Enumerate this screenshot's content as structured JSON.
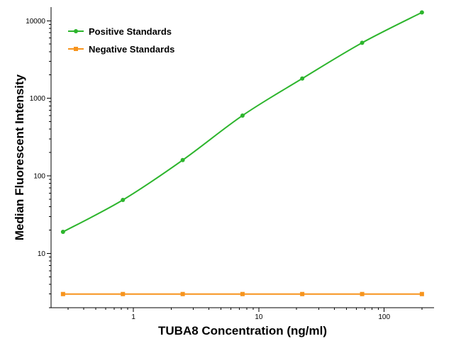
{
  "chart_data": {
    "type": "line",
    "title": "",
    "xlabel": "TUBA8 Concentration (ng/ml)",
    "ylabel": "Median Fluorescent Intensity",
    "x_scale": "log",
    "y_scale": "log",
    "xlim": [
      0.22,
      250
    ],
    "ylim": [
      2,
      15000
    ],
    "x_ticks": [
      1,
      10,
      100
    ],
    "x_tick_labels": [
      "1",
      "10",
      "100"
    ],
    "y_ticks": [
      10,
      100,
      1000,
      10000
    ],
    "y_tick_labels": [
      "10",
      "100",
      "1000",
      "10000"
    ],
    "grid": false,
    "legend_position": "top-left",
    "series": [
      {
        "name": "Positive Standards",
        "color": "#2db52d",
        "marker": "circle",
        "x": [
          0.274,
          0.823,
          2.47,
          7.41,
          22.2,
          66.7,
          200
        ],
        "y": [
          19,
          49,
          160,
          600,
          1800,
          5200,
          12800
        ]
      },
      {
        "name": "Negative Standards",
        "color": "#f7941d",
        "marker": "square",
        "x": [
          0.274,
          0.823,
          2.47,
          7.41,
          22.2,
          66.7,
          200
        ],
        "y": [
          3,
          3,
          3,
          3,
          3,
          3,
          3
        ]
      }
    ]
  }
}
